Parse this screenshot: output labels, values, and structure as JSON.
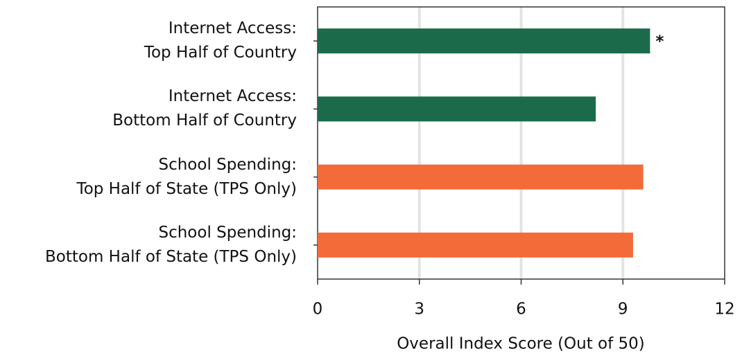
{
  "chart_data": {
    "type": "barh",
    "categories": [
      "Internet Access:\nTop Half of Country",
      "Internet Access:\nBottom Half of Country",
      "School Spending:\nTop Half of State (TPS Only)",
      "School Spending:\nBottom Half of State (TPS Only)"
    ],
    "values": [
      9.8,
      8.2,
      9.6,
      9.3
    ],
    "colors": [
      "#1b6b4a",
      "#1b6b4a",
      "#f26b38",
      "#f26b38"
    ],
    "markers": [
      "*",
      null,
      null,
      null
    ],
    "xlabel": "Overall Index Score (Out of 50)",
    "xlim": [
      0,
      12
    ],
    "xticks": [
      0,
      3,
      6,
      9,
      12
    ],
    "grid": true
  }
}
